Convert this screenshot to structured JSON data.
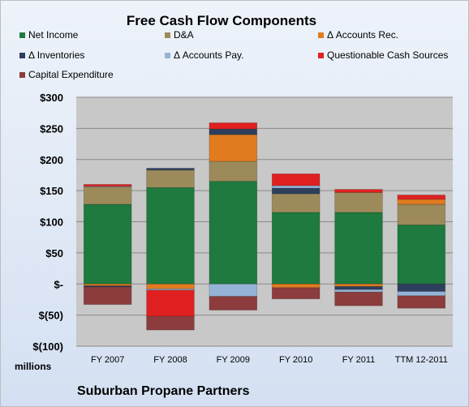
{
  "chart_data": {
    "type": "bar",
    "stacked": true,
    "title": "Free Cash Flow Components",
    "ylabel": "",
    "y_unit_label": "millions",
    "company": "Suburban Propane Partners",
    "categories": [
      "FY 2007",
      "FY 2008",
      "FY 2009",
      "FY 2010",
      "FY 2011",
      "TTM 12-2011"
    ],
    "ylim": [
      -100,
      300
    ],
    "yticks": [
      -100,
      -50,
      0,
      50,
      100,
      150,
      200,
      250,
      300
    ],
    "ytick_labels": [
      "$(100)",
      "$(50)",
      "$-",
      "$50",
      "$100",
      "$150",
      "$200",
      "$250",
      "$300"
    ],
    "legend_position": "top",
    "plot_background": "#c8c8c8",
    "series": [
      {
        "name": "Net Income",
        "color": "#1e7a3e",
        "values": [
          128,
          155,
          165,
          115,
          115,
          95
        ]
      },
      {
        "name": "D&A",
        "color": "#9c8a5a",
        "values": [
          28,
          28,
          32,
          30,
          32,
          33
        ]
      },
      {
        "name": "Δ Accounts Rec.",
        "color": "#e07b1f",
        "values": [
          -3,
          -8,
          43,
          -6,
          -4,
          8
        ]
      },
      {
        "name": "Δ Inventories",
        "color": "#2e3f5e",
        "values": [
          -2,
          3,
          9,
          9,
          -5,
          -12
        ]
      },
      {
        "name": "Δ Accounts Pay.",
        "color": "#95b3d7",
        "values": [
          1,
          -2,
          -20,
          4,
          -4,
          -7
        ]
      },
      {
        "name": "Questionable Cash Sources",
        "color": "#e02020",
        "values": [
          3,
          -42,
          10,
          19,
          5,
          7
        ]
      },
      {
        "name": "Capital Expenditure",
        "color": "#8c3c3c",
        "values": [
          -28,
          -22,
          -22,
          -18,
          -22,
          -20
        ]
      }
    ]
  }
}
